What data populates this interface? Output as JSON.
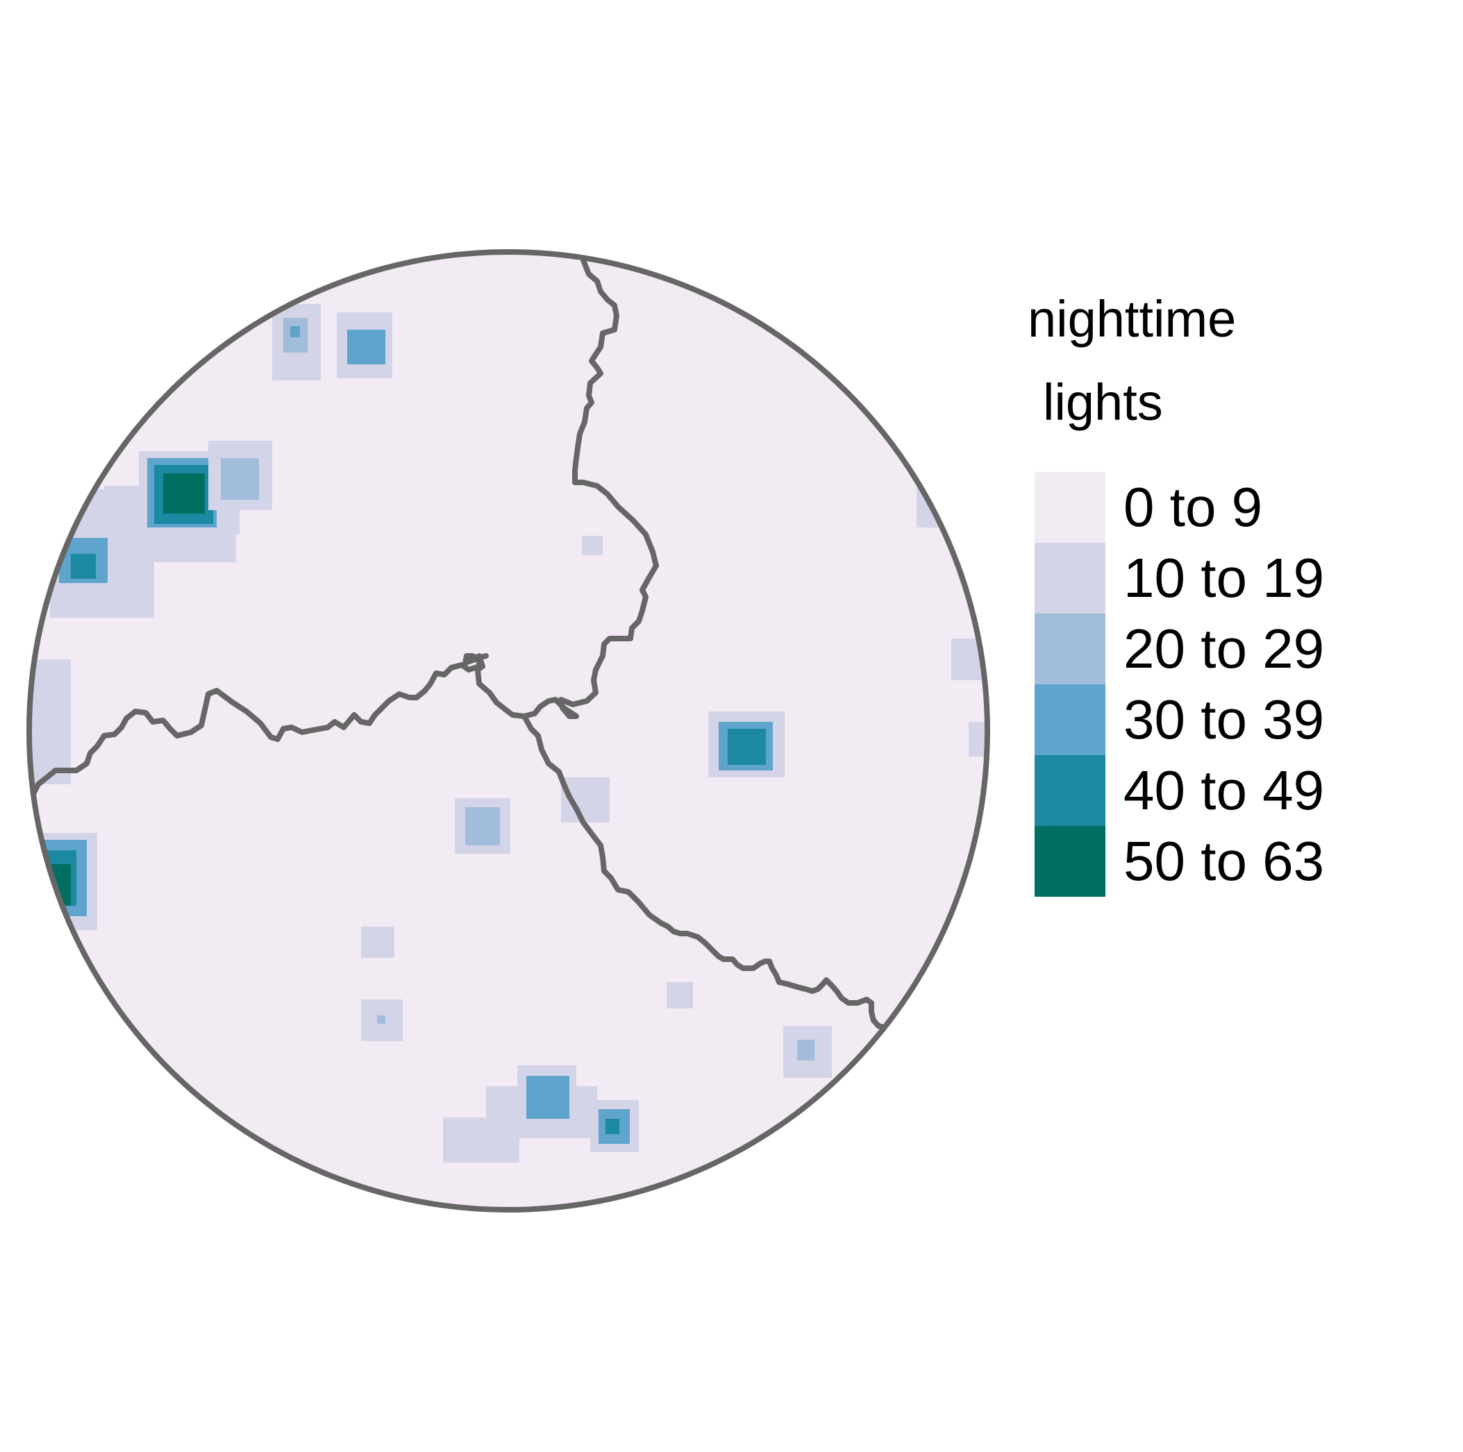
{
  "legend": {
    "title_line1": "nighttime",
    "title_line2": "lights",
    "items": [
      {
        "label": "0 to 9",
        "color": "#F3EBF4"
      },
      {
        "label": "10 to 19",
        "color": "#D4D4E8"
      },
      {
        "label": "20 to 29",
        "color": "#A2BDDB"
      },
      {
        "label": "30 to 39",
        "color": "#5EA4CD"
      },
      {
        "label": "40 to 49",
        "color": "#1C89A3"
      },
      {
        "label": "50 to 63",
        "color": "#006F62"
      }
    ]
  },
  "colors": {
    "background": "#F3EBF4",
    "border": "#666666",
    "page": "#FFFFFF"
  }
}
